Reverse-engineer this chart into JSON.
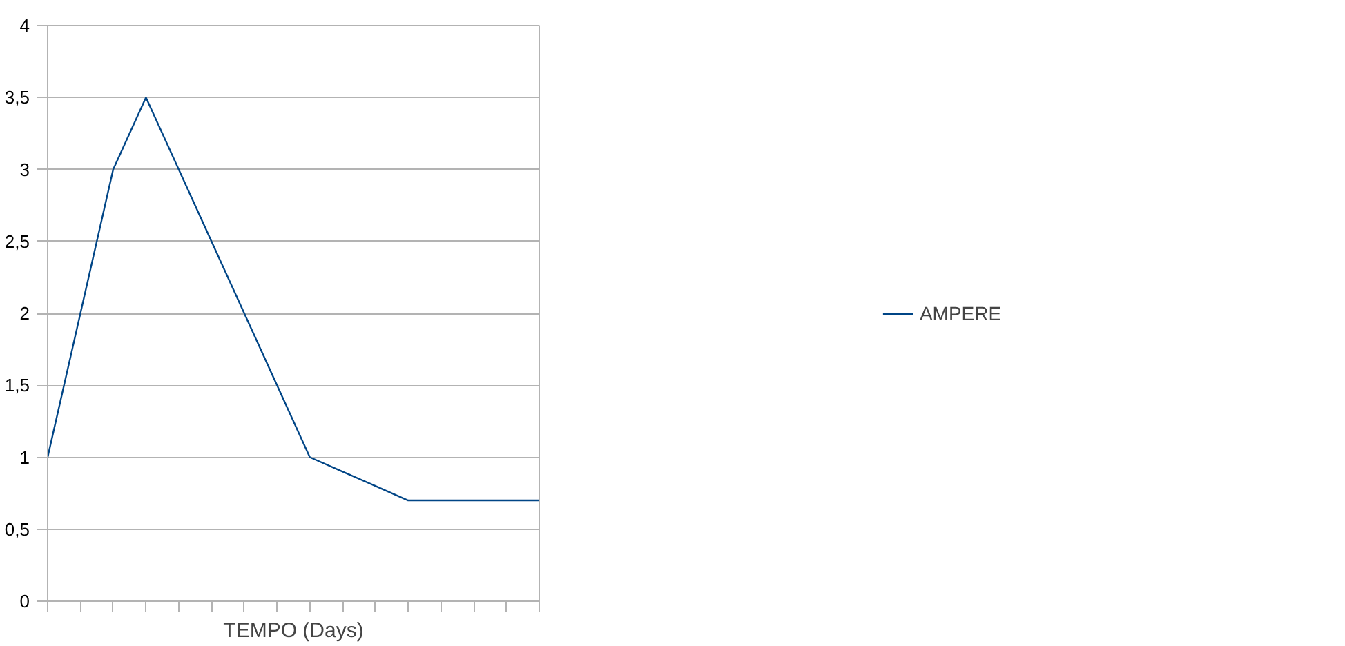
{
  "chart_data": {
    "type": "line",
    "xlabel": "TEMPO (Days)",
    "categories": [
      null,
      null,
      null,
      null,
      null,
      null,
      null,
      null,
      null,
      null,
      null,
      null,
      null,
      null,
      null,
      null
    ],
    "series": [
      {
        "name": "AMPERE",
        "color": "#004586",
        "values": [
          1,
          2,
          3,
          3.5,
          3,
          2.5,
          2,
          1.5,
          1,
          0.9,
          0.8,
          0.7,
          0.7,
          0.7,
          0.7,
          0.7
        ]
      }
    ],
    "ylim": [
      0,
      4
    ],
    "yticks": [
      0,
      {
        "value": 0.5,
        "label": "0,5"
      },
      1,
      {
        "value": 1.5,
        "label": "1,5"
      },
      2,
      {
        "value": 2.5,
        "label": "2,5"
      },
      3,
      {
        "value": 3.5,
        "label": "3,5"
      },
      4
    ],
    "grid": "y",
    "legend": "right",
    "tick_labels": "y",
    "marker": "none",
    "line_style": "solid"
  }
}
